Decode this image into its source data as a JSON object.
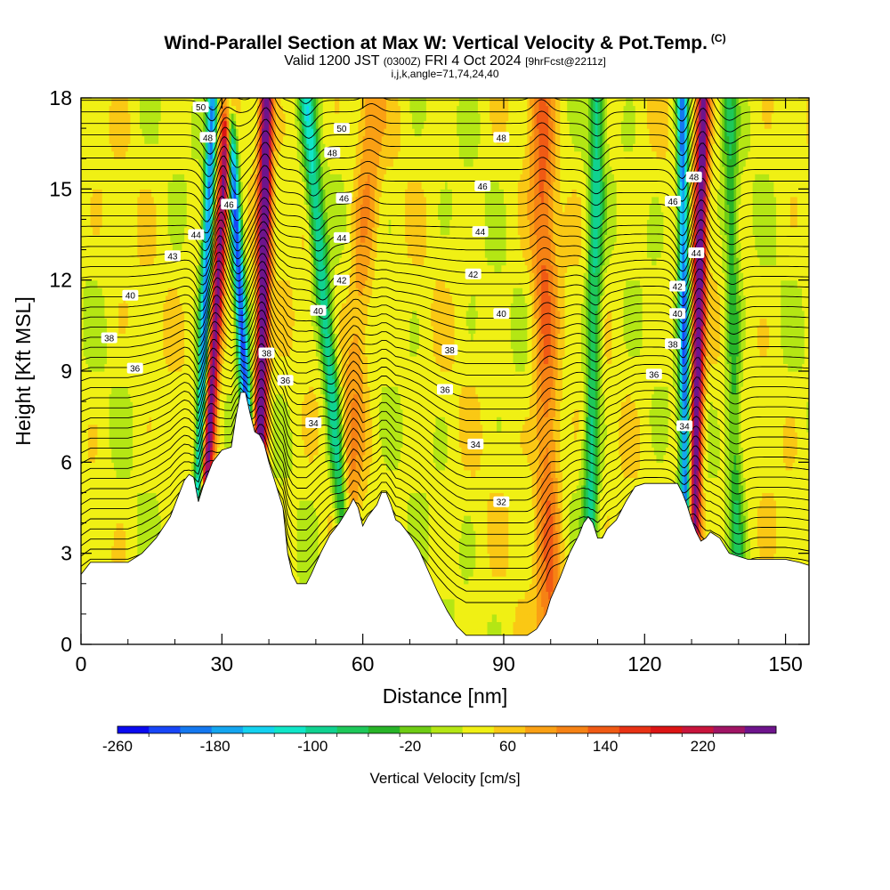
{
  "chart_data": {
    "type": "heatmap",
    "title": "Wind-Parallel Section at Max W: Vertical Velocity & Pot.Temp.",
    "title_mark": "(C)",
    "subtitle": {
      "valid": "Valid 1200 JST",
      "utc": "(0300Z)",
      "date": "FRI 4 Oct 2024",
      "forecast": "[9hrFcst@2211z]"
    },
    "indices": "i,j,k,angle=71,74,24,40",
    "xlabel": "Distance [nm]",
    "ylabel": "Height [Kft MSL]",
    "xlim": [
      0,
      155
    ],
    "ylim": [
      0,
      18
    ],
    "x_ticks": [
      0,
      30,
      60,
      90,
      120,
      150
    ],
    "y_ticks": [
      0,
      3,
      6,
      9,
      12,
      15,
      18
    ],
    "colorbar": {
      "label": "Vertical Velocity [cm/s]",
      "min": -260,
      "max": 280,
      "tick_labels": [
        "-260",
        "-180",
        "-100",
        "-20",
        "60",
        "140",
        "220"
      ],
      "tick_values": [
        -260,
        -180,
        -100,
        -20,
        60,
        140,
        220
      ],
      "colors": [
        "#0a0af0",
        "#1846f8",
        "#1478f0",
        "#14a6f0",
        "#14d2f0",
        "#10e6c8",
        "#10d290",
        "#1ec85a",
        "#28b428",
        "#6ecc14",
        "#b4e614",
        "#f0f014",
        "#fac814",
        "#faa014",
        "#f68214",
        "#f05a14",
        "#e83214",
        "#dc1414",
        "#c8143c",
        "#a01464",
        "#6e148c"
      ]
    },
    "terrain": [
      [
        0,
        2.3
      ],
      [
        2,
        2.7
      ],
      [
        5,
        2.7
      ],
      [
        10,
        2.7
      ],
      [
        13,
        3.0
      ],
      [
        16,
        3.5
      ],
      [
        19,
        4.2
      ],
      [
        21,
        5.0
      ],
      [
        22,
        5.4
      ],
      [
        23,
        5.6
      ],
      [
        24,
        5.5
      ],
      [
        25,
        4.7
      ],
      [
        26,
        5.2
      ],
      [
        27,
        5.6
      ],
      [
        28,
        6.0
      ],
      [
        30,
        6.4
      ],
      [
        32,
        6.5
      ],
      [
        33,
        7.5
      ],
      [
        34,
        8.3
      ],
      [
        35,
        8.3
      ],
      [
        36,
        7.6
      ],
      [
        37,
        7.0
      ],
      [
        38,
        6.9
      ],
      [
        39,
        6.6
      ],
      [
        40,
        6.0
      ],
      [
        42,
        5.0
      ],
      [
        43,
        4.5
      ],
      [
        44,
        3.0
      ],
      [
        45,
        2.3
      ],
      [
        46,
        2.0
      ],
      [
        48,
        2.0
      ],
      [
        49,
        2.3
      ],
      [
        51,
        3.0
      ],
      [
        53,
        3.6
      ],
      [
        55,
        4.0
      ],
      [
        57,
        4.5
      ],
      [
        58,
        4.8
      ],
      [
        59,
        4.5
      ],
      [
        60,
        3.9
      ],
      [
        61,
        4.2
      ],
      [
        63,
        4.6
      ],
      [
        64,
        5.0
      ],
      [
        65,
        5.0
      ],
      [
        66,
        4.6
      ],
      [
        67,
        4.1
      ],
      [
        68,
        4.0
      ],
      [
        70,
        3.6
      ],
      [
        72,
        3.1
      ],
      [
        74,
        2.4
      ],
      [
        76,
        1.7
      ],
      [
        78,
        1.1
      ],
      [
        80,
        0.6
      ],
      [
        82,
        0.3
      ],
      [
        84,
        0.3
      ],
      [
        88,
        0.3
      ],
      [
        92,
        0.3
      ],
      [
        95,
        0.3
      ],
      [
        97,
        0.5
      ],
      [
        99,
        1.0
      ],
      [
        100,
        1.5
      ],
      [
        102,
        2.2
      ],
      [
        104,
        3.0
      ],
      [
        106,
        3.6
      ],
      [
        107,
        4.0
      ],
      [
        108,
        4.2
      ],
      [
        109,
        4.0
      ],
      [
        110,
        3.5
      ],
      [
        111,
        3.5
      ],
      [
        112,
        3.8
      ],
      [
        114,
        4.1
      ],
      [
        116,
        4.7
      ],
      [
        118,
        5.2
      ],
      [
        120,
        5.3
      ],
      [
        124,
        5.3
      ],
      [
        127,
        5.3
      ],
      [
        128,
        5.0
      ],
      [
        129,
        4.6
      ],
      [
        130,
        4.1
      ],
      [
        131,
        3.7
      ],
      [
        132,
        3.4
      ],
      [
        133,
        3.5
      ],
      [
        134,
        3.7
      ],
      [
        136,
        3.5
      ],
      [
        138,
        3.0
      ],
      [
        140,
        2.9
      ],
      [
        142,
        2.8
      ],
      [
        146,
        2.8
      ],
      [
        150,
        2.8
      ],
      [
        153,
        2.7
      ],
      [
        155,
        2.6
      ]
    ],
    "updraft_bands": [
      {
        "x_bottom": 24.5,
        "x_top": 31.5,
        "peak_cm_s": 240
      },
      {
        "x_bottom": 37.5,
        "x_top": 39.5,
        "peak_cm_s": 280
      },
      {
        "x_bottom": 130.0,
        "x_top": 132.5,
        "peak_cm_s": 260
      },
      {
        "x_bottom": 100.0,
        "x_top": 98.0,
        "peak_cm_s": 90
      },
      {
        "x_bottom": 55.0,
        "x_top": 62.0,
        "peak_cm_s": 60
      }
    ],
    "downdraft_bands": [
      {
        "x_bottom": 24.0,
        "x_top": 28.0,
        "peak_cm_s": -220
      },
      {
        "x_bottom": 38.0,
        "x_top": 31.5,
        "peak_cm_s": -250
      },
      {
        "x_bottom": 58.0,
        "x_top": 48.0,
        "peak_cm_s": -140
      },
      {
        "x_bottom": 129.0,
        "x_top": 128.0,
        "peak_cm_s": -240
      },
      {
        "x_bottom": 108.0,
        "x_top": 110.0,
        "peak_cm_s": -120
      },
      {
        "x_bottom": 140.0,
        "x_top": 138.0,
        "peak_cm_s": -80
      }
    ],
    "isentrope_labels": [
      {
        "text": "50",
        "x": 25.5,
        "y": 17.7
      },
      {
        "text": "48",
        "x": 27.0,
        "y": 16.7
      },
      {
        "text": "46",
        "x": 31.5,
        "y": 14.5
      },
      {
        "text": "44",
        "x": 24.5,
        "y": 13.5
      },
      {
        "text": "43",
        "x": 19.5,
        "y": 12.8
      },
      {
        "text": "40",
        "x": 10.5,
        "y": 11.5
      },
      {
        "text": "38",
        "x": 6.0,
        "y": 10.1
      },
      {
        "text": "36",
        "x": 11.5,
        "y": 9.1
      },
      {
        "text": "50",
        "x": 55.5,
        "y": 17.0
      },
      {
        "text": "48",
        "x": 53.5,
        "y": 16.2
      },
      {
        "text": "46",
        "x": 56.0,
        "y": 14.7
      },
      {
        "text": "44",
        "x": 55.5,
        "y": 13.4
      },
      {
        "text": "42",
        "x": 55.5,
        "y": 12.0
      },
      {
        "text": "40",
        "x": 50.5,
        "y": 11.0
      },
      {
        "text": "38",
        "x": 39.5,
        "y": 9.6
      },
      {
        "text": "36",
        "x": 43.5,
        "y": 8.7
      },
      {
        "text": "34",
        "x": 49.5,
        "y": 7.3
      },
      {
        "text": "48",
        "x": 89.5,
        "y": 16.7
      },
      {
        "text": "46",
        "x": 85.5,
        "y": 15.1
      },
      {
        "text": "44",
        "x": 85.0,
        "y": 13.6
      },
      {
        "text": "42",
        "x": 83.5,
        "y": 12.2
      },
      {
        "text": "40",
        "x": 89.5,
        "y": 10.9
      },
      {
        "text": "38",
        "x": 78.5,
        "y": 9.7
      },
      {
        "text": "36",
        "x": 77.5,
        "y": 8.4
      },
      {
        "text": "34",
        "x": 84.0,
        "y": 6.6
      },
      {
        "text": "32",
        "x": 89.5,
        "y": 4.7
      },
      {
        "text": "48",
        "x": 130.5,
        "y": 15.4
      },
      {
        "text": "46",
        "x": 126.0,
        "y": 14.6
      },
      {
        "text": "44",
        "x": 131.0,
        "y": 12.9
      },
      {
        "text": "42",
        "x": 127.0,
        "y": 11.8
      },
      {
        "text": "40",
        "x": 127.0,
        "y": 10.9
      },
      {
        "text": "38",
        "x": 126.0,
        "y": 9.9
      },
      {
        "text": "36",
        "x": 122.0,
        "y": 8.9
      },
      {
        "text": "34",
        "x": 128.5,
        "y": 7.2
      }
    ]
  }
}
